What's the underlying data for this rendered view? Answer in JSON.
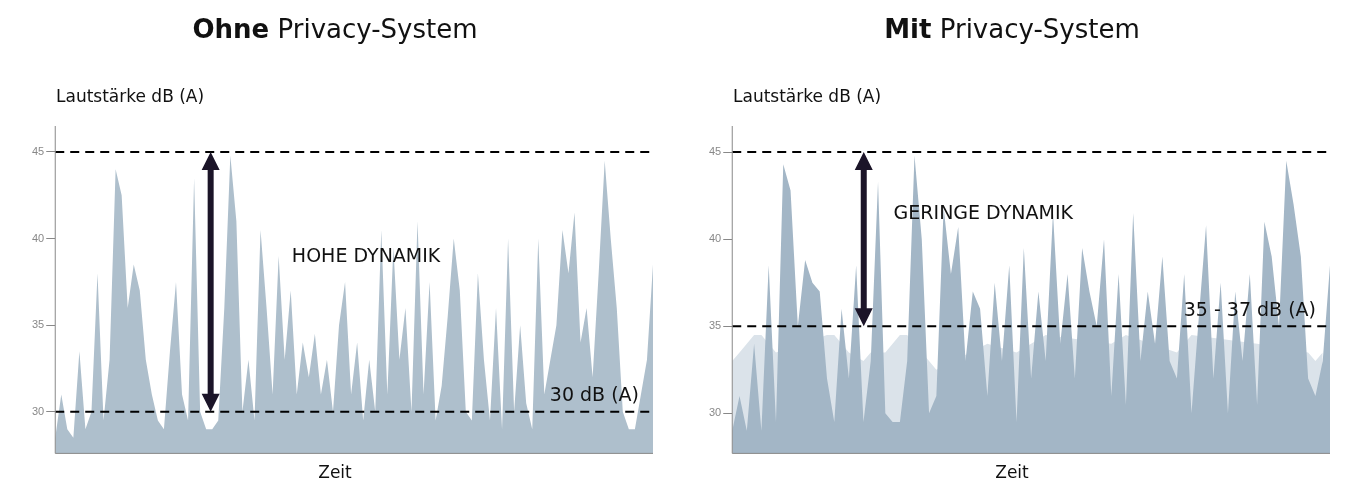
{
  "chart_data": [
    {
      "type": "area",
      "title": "Ohne Privacy-System",
      "xlabel": "Zeit",
      "ylabel": "Lautstärke dB (A)",
      "categories": [
        null,
        null,
        null,
        null,
        null,
        null,
        null,
        null,
        null,
        null,
        null,
        null,
        null,
        null,
        null,
        null,
        null,
        null,
        null,
        null,
        null,
        null,
        null,
        null,
        null,
        null,
        null,
        null,
        null,
        null,
        null,
        null,
        null,
        null,
        null,
        null,
        null,
        null,
        null,
        null,
        null,
        null,
        null,
        null,
        null,
        null,
        null,
        null,
        null,
        null,
        null,
        null,
        null,
        null,
        null,
        null,
        null,
        null,
        null,
        null,
        null,
        null,
        null,
        null,
        null,
        null,
        null,
        null,
        null,
        null,
        null,
        null,
        null,
        null,
        null,
        null,
        null,
        null,
        null,
        null,
        null,
        null,
        null,
        null,
        null,
        null,
        null,
        null,
        null,
        null,
        null,
        null,
        null,
        null,
        null,
        null,
        null,
        null,
        null,
        null
      ],
      "series": [
        {
          "color": "#aebfcc",
          "values": [
            28.5,
            31,
            29,
            28.5,
            33.5,
            29,
            30,
            38,
            29.5,
            33,
            44,
            42.5,
            36,
            38.5,
            37,
            33,
            31,
            29.5,
            29,
            33.5,
            37.5,
            31,
            29.5,
            43.5,
            30,
            29,
            29,
            29.5,
            36,
            44.8,
            41,
            30,
            33,
            29.5,
            40.5,
            36,
            31,
            39,
            33,
            37,
            31,
            34,
            32,
            34.5,
            31,
            33,
            30,
            35,
            37.5,
            31,
            34,
            29.5,
            33,
            30,
            40.5,
            31,
            39.5,
            33,
            36,
            30,
            41,
            31,
            37.5,
            29.5,
            31.5,
            35.5,
            40,
            37,
            30,
            29.5,
            38,
            33,
            29.5,
            36,
            29,
            40,
            30,
            35,
            30.5,
            29,
            40,
            31,
            33,
            35,
            40.5,
            38,
            41.5,
            34,
            36,
            32,
            38,
            44.5,
            40,
            36,
            30,
            29,
            29,
            31,
            33,
            38.5
          ]
        }
      ],
      "ylim": [
        27.6,
        46.5
      ],
      "yticks": [
        30,
        35,
        40,
        45
      ],
      "tick_labels": "y",
      "ref_lines": [
        {
          "axis": "y",
          "value": 45,
          "line_style": "dashed",
          "color": "#000000"
        },
        {
          "axis": "y",
          "value": 30,
          "label": "30 dB (A)",
          "line_style": "dashed",
          "color": "#000000"
        }
      ],
      "annotations": [
        "HOHE DYNAMIK"
      ]
    },
    {
      "type": "area",
      "title": "Mit Privacy-System",
      "xlabel": "Zeit",
      "ylabel": "Lautstärke dB (A)",
      "categories": [
        null,
        null,
        null,
        null,
        null,
        null,
        null,
        null,
        null,
        null,
        null,
        null,
        null,
        null,
        null,
        null,
        null,
        null,
        null,
        null,
        null,
        null,
        null,
        null,
        null,
        null,
        null,
        null,
        null,
        null,
        null,
        null,
        null,
        null,
        null,
        null,
        null,
        null,
        null,
        null,
        null,
        null,
        null,
        null,
        null,
        null,
        null,
        null,
        null,
        null,
        null,
        null,
        null,
        null,
        null,
        null,
        null,
        null,
        null,
        null,
        null,
        null,
        null,
        null,
        null,
        null,
        null,
        null,
        null,
        null,
        null,
        null,
        null,
        null,
        null,
        null,
        null,
        null,
        null,
        null,
        null,
        null,
        null
      ],
      "series": [
        {
          "color": "#dbe3ea",
          "values": [
            33,
            33.5,
            34,
            34.5,
            34.5,
            null,
            33.5,
            null,
            null,
            null,
            null,
            null,
            null,
            34.5,
            34.5,
            null,
            33.5,
            null,
            33,
            33.5,
            null,
            33.5,
            34,
            34.5,
            34.5,
            null,
            null,
            33,
            32.5,
            null,
            null,
            null,
            null,
            null,
            null,
            34,
            null,
            null,
            null,
            33.5,
            null,
            null,
            null,
            34.5,
            null,
            null,
            null,
            null,
            null,
            null,
            null,
            null,
            34,
            null,
            34.5,
            null,
            null,
            null,
            null,
            null,
            null,
            33.5,
            null,
            34.5,
            null,
            null,
            null,
            null,
            null,
            null,
            null,
            null,
            34,
            null,
            null,
            null,
            null,
            null,
            null,
            33.5,
            33,
            33.5,
            null
          ]
        },
        {
          "color": "#a3b6c6",
          "values": [
            29,
            31,
            29,
            34,
            29,
            38.5,
            29.5,
            44.3,
            42.8,
            35,
            38.8,
            37.5,
            37,
            32,
            29.5,
            36,
            32,
            38.5,
            29.5,
            33,
            43.3,
            30,
            29.5,
            29.5,
            33,
            44.8,
            40,
            30,
            31,
            41.8,
            38,
            40.7,
            33,
            37,
            36,
            31,
            37.5,
            33,
            38.5,
            29.5,
            39.5,
            32,
            37,
            33,
            41.5,
            34,
            38,
            32,
            39.5,
            37,
            35,
            40,
            31,
            38,
            30.5,
            41.5,
            33,
            37,
            34,
            39,
            33,
            32,
            38,
            30,
            35.5,
            40.8,
            32,
            37.5,
            30,
            37,
            33,
            38,
            30.5,
            41,
            39,
            35,
            44.5,
            42,
            39,
            32,
            31,
            33,
            38.5
          ]
        }
      ],
      "ylim": [
        27.7,
        46.5
      ],
      "yticks": [
        30,
        35,
        40,
        45
      ],
      "tick_labels": "y",
      "ref_lines": [
        {
          "axis": "y",
          "value": 45,
          "line_style": "dashed",
          "color": "#000000"
        },
        {
          "axis": "y",
          "value": 35,
          "label": "35 - 37 dB (A)",
          "line_style": "dashed",
          "color": "#000000"
        }
      ],
      "annotations": [
        "GERINGE DYNAMIK"
      ]
    }
  ]
}
